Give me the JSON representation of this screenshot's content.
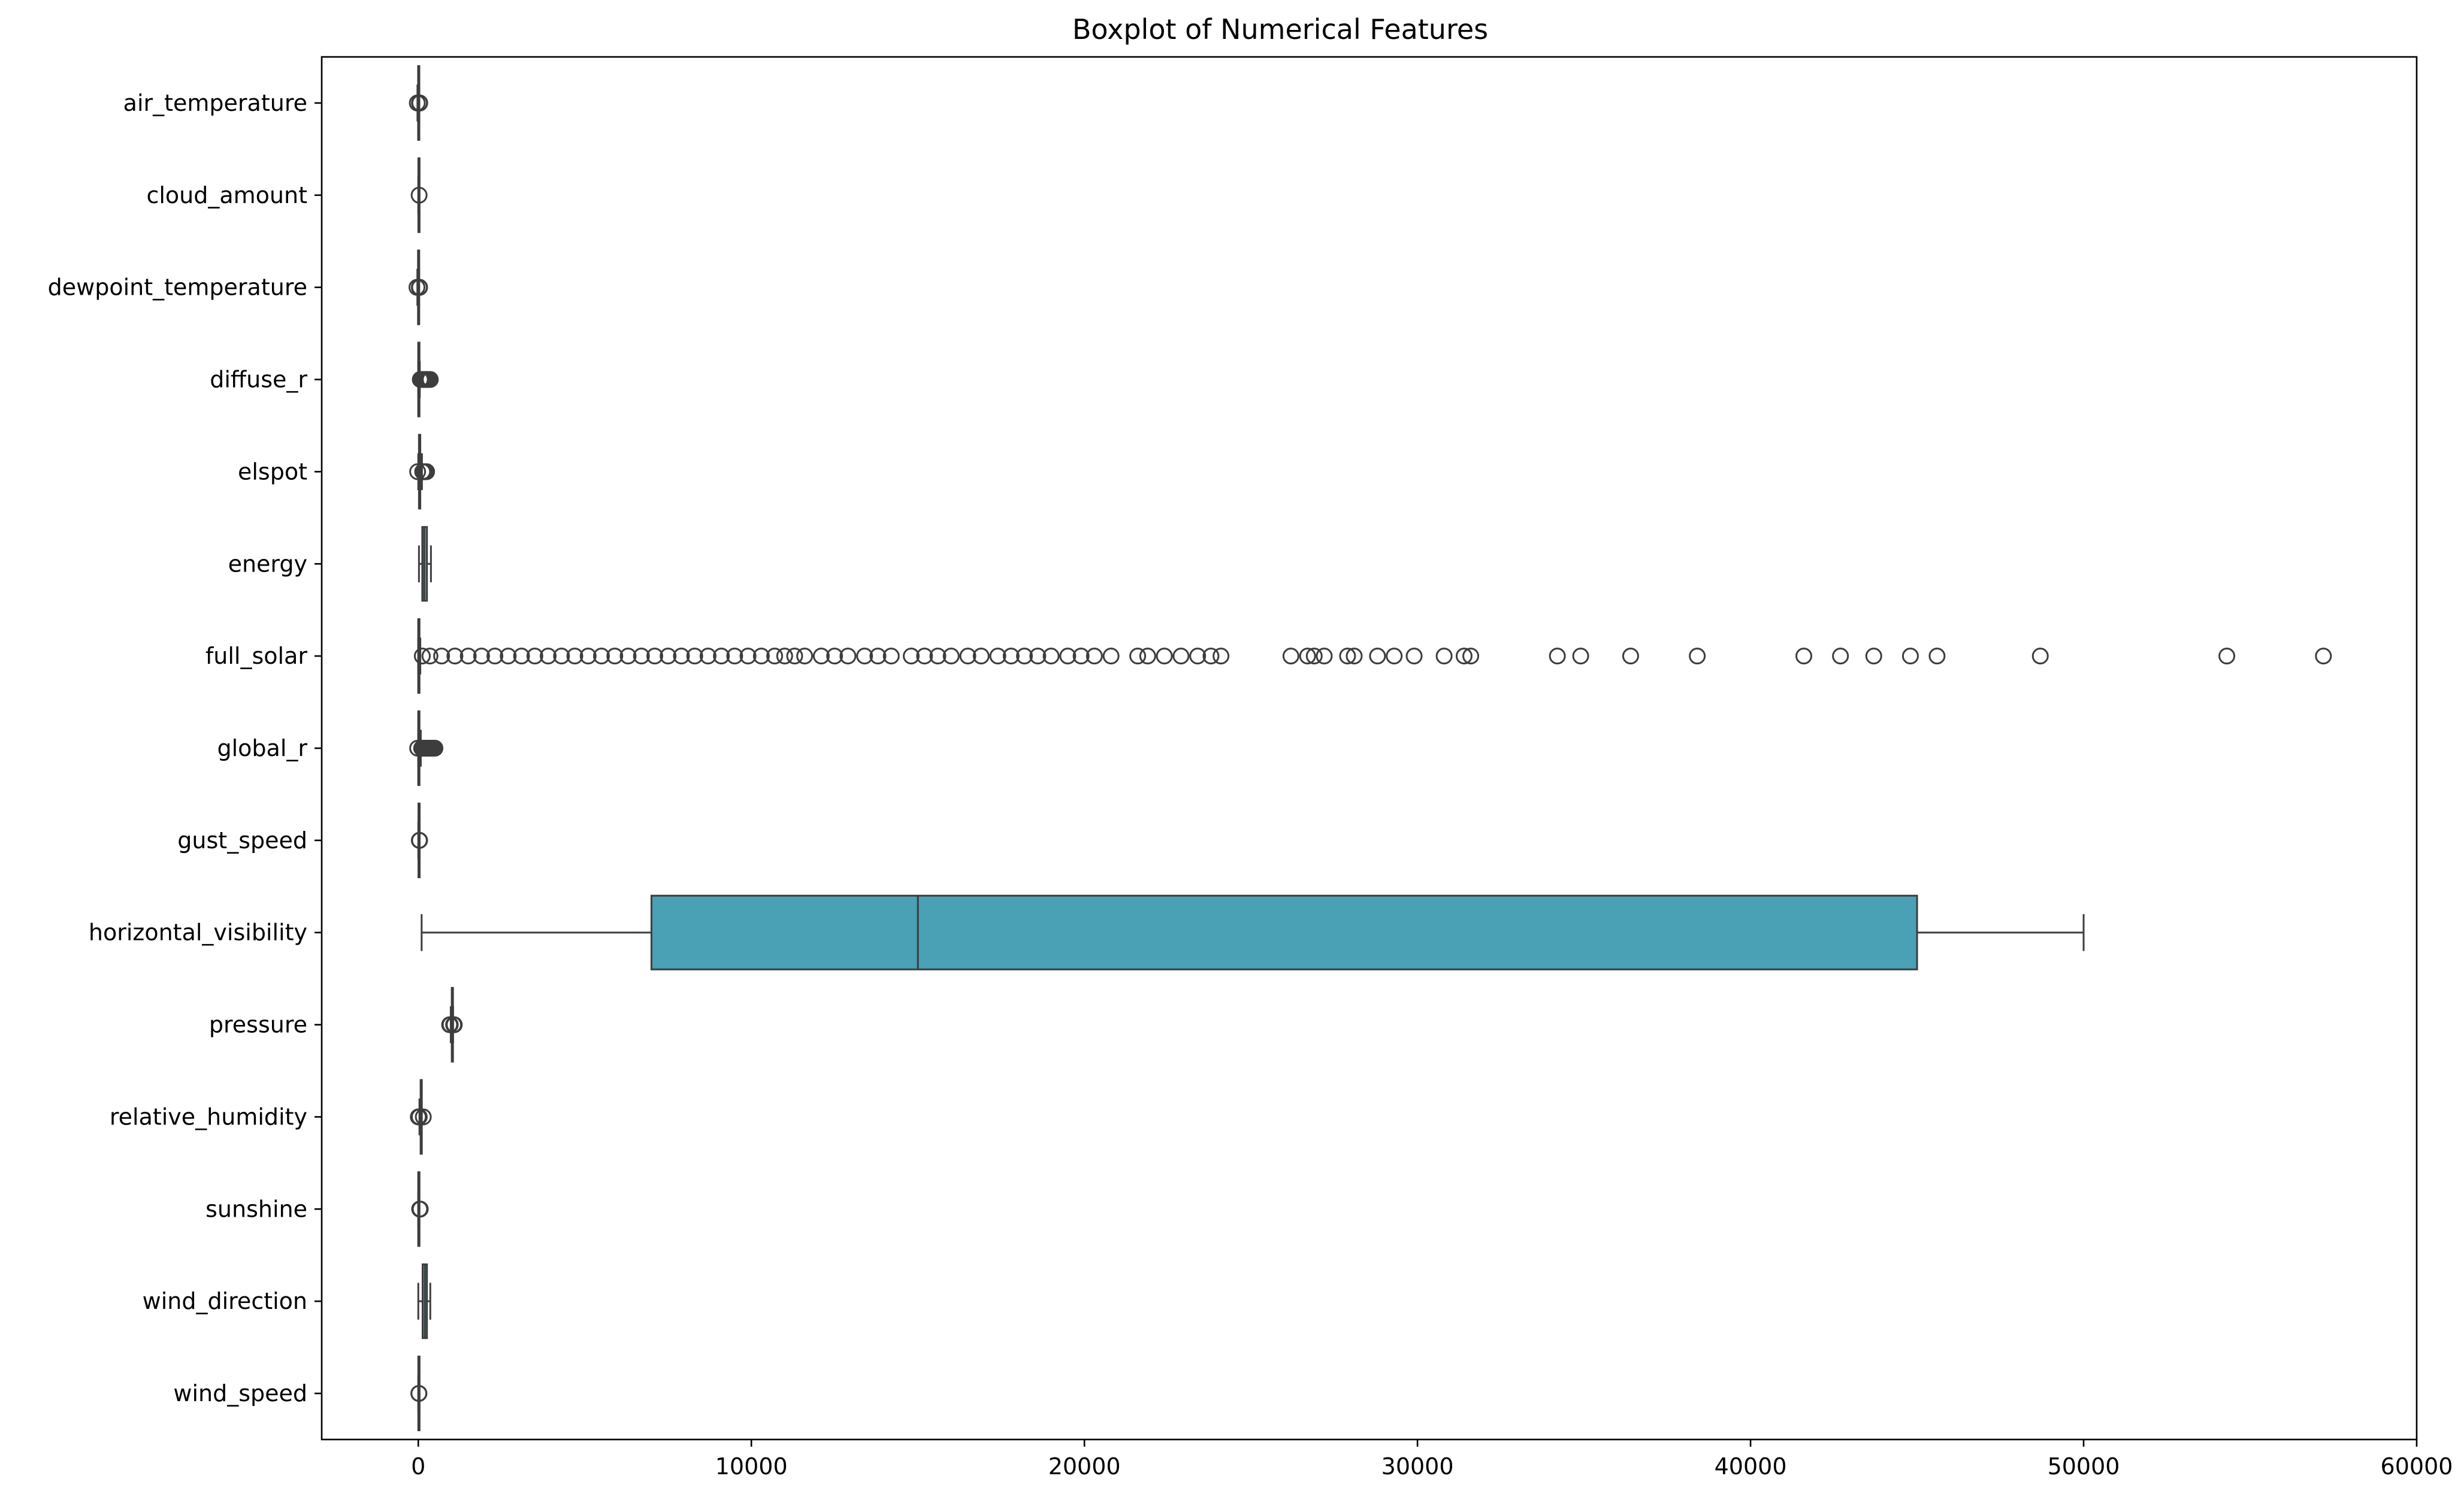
{
  "chart_data": {
    "type": "boxplot",
    "orientation": "horizontal",
    "title": "Boxplot of Numerical Features",
    "xlabel": "",
    "ylabel": "",
    "xlim": [
      -2900,
      60000
    ],
    "xticks": [
      0,
      10000,
      20000,
      30000,
      40000,
      50000,
      60000
    ],
    "xtick_labels": [
      "0",
      "10000",
      "20000",
      "30000",
      "40000",
      "50000",
      "60000"
    ],
    "grid": false,
    "box_color": "#4aa0b5",
    "line_color": "#3d3d3d",
    "categories": [
      "air_temperature",
      "cloud_amount",
      "dewpoint_temperature",
      "diffuse_r",
      "elspot",
      "energy",
      "full_solar",
      "global_r",
      "gust_speed",
      "horizontal_visibility",
      "pressure",
      "relative_humidity",
      "sunshine",
      "wind_direction",
      "wind_speed"
    ],
    "boxes": [
      {
        "name": "air_temperature",
        "whisker_low": -25,
        "q1": -5,
        "median": 7,
        "q3": 15,
        "whisker_high": 32,
        "outliers": [
          -30,
          35,
          45
        ]
      },
      {
        "name": "cloud_amount",
        "whisker_low": 0,
        "q1": 2,
        "median": 5,
        "q3": 7,
        "whisker_high": 8,
        "outliers": [
          25
        ]
      },
      {
        "name": "dewpoint_temperature",
        "whisker_low": -28,
        "q1": -8,
        "median": 2,
        "q3": 9,
        "whisker_high": 25,
        "outliers": [
          -40,
          30,
          40
        ]
      },
      {
        "name": "diffuse_r",
        "whisker_low": 0,
        "q1": 0,
        "median": 0,
        "q3": 20,
        "whisker_high": 45,
        "outliers": [
          60,
          90,
          120,
          150,
          180,
          210,
          240,
          270,
          300,
          330,
          360
        ]
      },
      {
        "name": "elspot",
        "whisker_low": 0,
        "q1": 20,
        "median": 40,
        "q3": 60,
        "whisker_high": 110,
        "outliers": [
          -20,
          130,
          160,
          190,
          220,
          250
        ]
      },
      {
        "name": "energy",
        "whisker_low": 20,
        "q1": 120,
        "median": 180,
        "q3": 260,
        "whisker_high": 380,
        "outliers": []
      },
      {
        "name": "full_solar",
        "whisker_low": 0,
        "q1": 0,
        "median": 0,
        "q3": 20,
        "whisker_high": 60,
        "outliers": [
          120,
          350,
          700,
          1100,
          1500,
          1900,
          2300,
          2700,
          3100,
          3500,
          3900,
          4300,
          4700,
          5100,
          5500,
          5900,
          6300,
          6700,
          7100,
          7500,
          7900,
          8300,
          8700,
          9100,
          9500,
          9900,
          10300,
          10700,
          11000,
          11300,
          11600,
          12100,
          12500,
          12900,
          13400,
          13800,
          14200,
          14800,
          15200,
          15600,
          16000,
          16500,
          16900,
          17400,
          17800,
          18200,
          18600,
          19000,
          19500,
          19900,
          20300,
          20800,
          21600,
          21900,
          22400,
          22900,
          23400,
          23800,
          24100,
          26200,
          26700,
          26900,
          27200,
          27900,
          28100,
          28800,
          29300,
          29900,
          30800,
          31400,
          31600,
          34200,
          34900,
          36400,
          38400,
          41600,
          42700,
          43700,
          44800,
          45600,
          48700,
          54300,
          57200
        ]
      },
      {
        "name": "global_r",
        "whisker_low": 0,
        "q1": 0,
        "median": 0,
        "q3": 30,
        "whisker_high": 75,
        "outliers": [
          -20,
          100,
          140,
          180,
          220,
          260,
          300,
          340,
          380,
          420,
          460,
          500
        ]
      },
      {
        "name": "gust_speed",
        "whisker_low": 0,
        "q1": 5,
        "median": 8,
        "q3": 12,
        "whisker_high": 22,
        "outliers": [
          30,
          40
        ]
      },
      {
        "name": "horizontal_visibility",
        "whisker_low": 100,
        "q1": 7000,
        "median": 15000,
        "q3": 45000,
        "whisker_high": 50000,
        "outliers": []
      },
      {
        "name": "pressure",
        "whisker_low": 975,
        "q1": 1005,
        "median": 1012,
        "q3": 1020,
        "whisker_high": 1045,
        "outliers": [
          940,
          960,
          1060,
          1080
        ]
      },
      {
        "name": "relative_humidity",
        "whisker_low": 35,
        "q1": 70,
        "median": 82,
        "q3": 92,
        "whisker_high": 100,
        "outliers": [
          0,
          10,
          20,
          30,
          150
        ]
      },
      {
        "name": "sunshine",
        "whisker_low": 0,
        "q1": 0,
        "median": 0,
        "q3": 10,
        "whisker_high": 30,
        "outliers": [
          40,
          50,
          60
        ]
      },
      {
        "name": "wind_direction",
        "whisker_low": 0,
        "q1": 130,
        "median": 200,
        "q3": 260,
        "whisker_high": 360,
        "outliers": []
      },
      {
        "name": "wind_speed",
        "whisker_low": 0,
        "q1": 2,
        "median": 3,
        "q3": 5,
        "whisker_high": 10,
        "outliers": [
          15,
          20
        ]
      }
    ]
  }
}
